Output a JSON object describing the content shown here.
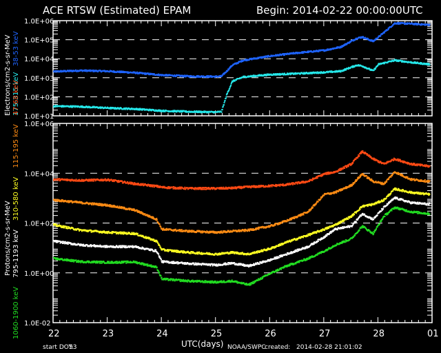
{
  "header": {
    "title": "ACE RTSW (Estimated) EPAM",
    "begin": "Begin: 2014-02-22 00:00:00UTC"
  },
  "footer": {
    "start_doy_label": "start DOY:",
    "start_doy": "53",
    "xlabel": "UTC(days)",
    "source": "NOAA/SWPC",
    "created_label": "created:",
    "created": "2014-02-28 21:01:02"
  },
  "colors": {
    "background": "#000000",
    "axes": "#ffffff",
    "e_38_53": "#1f64ff",
    "e_175_315": "#26e8ea",
    "p_47_68": "#ff4a14",
    "p_115_195": "#ff8c14",
    "p_310_580": "#ffff22",
    "p_795_1193": "#ffffff",
    "p_1060_1900": "#22dd22"
  },
  "chart_data": [
    {
      "type": "scatter",
      "title": "ACE RTSW (Estimated) EPAM — Electrons",
      "ylabel": "Electrons/cm2-s-sr-MeV",
      "yscale": "log",
      "ylim": [
        10,
        1000000
      ],
      "yticks": [
        "1.0E+01",
        "1.0E+02",
        "1.0E+03",
        "1.0E+04",
        "1.0E+05",
        "1.0E+06"
      ],
      "xlim": [
        22,
        29
      ],
      "xticks": [
        "22",
        "23",
        "24",
        "25",
        "26",
        "27",
        "28",
        "01"
      ],
      "grid": "dashed horizontal at each decade",
      "x": [
        22.0,
        22.5,
        23.0,
        23.5,
        24.0,
        24.5,
        25.0,
        25.1,
        25.2,
        25.3,
        25.5,
        26.0,
        26.5,
        27.0,
        27.3,
        27.6,
        27.7,
        27.9,
        28.0,
        28.3,
        28.6,
        28.95
      ],
      "series": [
        {
          "name": "38-53 keV",
          "color": "#1f64ff",
          "values": [
            2300,
            2600,
            2400,
            2000,
            1500,
            1300,
            1250,
            1300,
            2500,
            5000,
            9000,
            15000,
            22000,
            30000,
            45000,
            130000,
            150000,
            90000,
            150000,
            800000,
            750000,
            650000
          ]
        },
        {
          "name": "175-315 keV",
          "color": "#26e8ea",
          "values": [
            35,
            33,
            28,
            25,
            20,
            18,
            17,
            18,
            150,
            700,
            1200,
            1600,
            1800,
            2100,
            2400,
            5000,
            4500,
            2500,
            5500,
            9000,
            7000,
            5500
          ]
        }
      ]
    },
    {
      "type": "scatter",
      "title": "ACE RTSW (Estimated) EPAM — Protons",
      "ylabel": "Protons/cm2-s-sr-MeV",
      "yscale": "log",
      "ylim": [
        0.01,
        1000000
      ],
      "yticks": [
        "1.0E-02",
        "1.0E+00",
        "1.0E+02",
        "1.0E+04",
        "1.0E+06"
      ],
      "xlim": [
        22,
        29
      ],
      "xticks": [
        "22",
        "23",
        "24",
        "25",
        "26",
        "27",
        "28",
        "01"
      ],
      "grid": "dashed horizontal at 1E+00, 1E+02, 1E+04",
      "x": [
        22.0,
        22.5,
        23.0,
        23.5,
        23.9,
        24.0,
        24.5,
        25.0,
        25.3,
        25.6,
        26.0,
        26.3,
        26.7,
        27.0,
        27.2,
        27.5,
        27.7,
        27.9,
        28.1,
        28.3,
        28.6,
        28.95
      ],
      "series": [
        {
          "name": "47-68 keV",
          "color": "#ff4a14",
          "values": [
            6000,
            5500,
            5800,
            4000,
            3200,
            2900,
            2600,
            2600,
            2700,
            3000,
            3300,
            3700,
            5000,
            10000,
            12000,
            25000,
            80000,
            40000,
            25000,
            40000,
            25000,
            20000
          ]
        },
        {
          "name": "115-195 keV",
          "color": "#ff8c14",
          "values": [
            900,
            700,
            550,
            350,
            150,
            60,
            50,
            45,
            50,
            55,
            80,
            130,
            300,
            1500,
            1800,
            3500,
            10000,
            5000,
            4000,
            12000,
            6000,
            5000
          ]
        },
        {
          "name": "310-580 keV",
          "color": "#ffff22",
          "values": [
            90,
            55,
            45,
            40,
            20,
            9,
            7,
            6,
            7,
            6,
            10,
            18,
            35,
            60,
            90,
            200,
            500,
            600,
            900,
            2500,
            1800,
            1500
          ]
        },
        {
          "name": "795-1193 keV",
          "color": "#ffffff",
          "values": [
            20,
            14,
            12,
            12,
            8,
            3,
            2.5,
            2.2,
            2.6,
            2.0,
            3.5,
            6,
            12,
            30,
            60,
            80,
            250,
            150,
            450,
            1100,
            700,
            600
          ]
        },
        {
          "name": "1060-1900 keV",
          "color": "#22dd22",
          "values": [
            4,
            3,
            2.8,
            2.9,
            1.8,
            0.6,
            0.5,
            0.45,
            0.5,
            0.35,
            1.0,
            2.0,
            4,
            8,
            14,
            25,
            80,
            40,
            200,
            450,
            300,
            250
          ]
        }
      ]
    }
  ]
}
